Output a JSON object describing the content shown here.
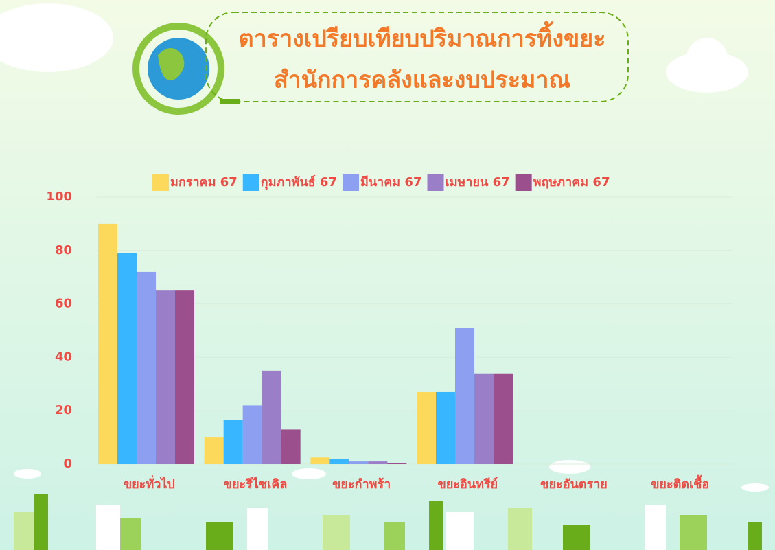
{
  "chart_data": {
    "type": "bar",
    "title": "ตารางเปรียบเทียบปริมาณการทิ้งขยะ",
    "subtitle": "สำนักการคลังและงบประมาณ",
    "categories": [
      "ขยะทั่วไป",
      "ขยะรีไซเคิล",
      "ขยะกำพร้า",
      "ขยะอินทรีย์",
      "ขยะอันตราย",
      "ขยะติดเชื้อ"
    ],
    "series": [
      {
        "name": "มกราคม 67",
        "color": "#fcd95a",
        "values": [
          90,
          10,
          2.5,
          27,
          0,
          0
        ]
      },
      {
        "name": "กุมภาพันธ์ 67",
        "color": "#38b6ff",
        "values": [
          79,
          16.5,
          2,
          27,
          0,
          0
        ]
      },
      {
        "name": "มีนาคม 67",
        "color": "#8c9ff0",
        "values": [
          72,
          22,
          1,
          51,
          0,
          0
        ]
      },
      {
        "name": "เมษายน 67",
        "color": "#9b7ec8",
        "values": [
          65,
          35,
          1,
          34,
          0,
          0
        ]
      },
      {
        "name": "พฤษภาคม 67",
        "color": "#9b4f8c",
        "values": [
          65,
          13,
          0.5,
          34,
          0,
          0
        ]
      }
    ],
    "ylim": [
      0,
      100
    ],
    "yticks": [
      0,
      20,
      40,
      60,
      80,
      100
    ],
    "grid": true,
    "legend": "top"
  }
}
